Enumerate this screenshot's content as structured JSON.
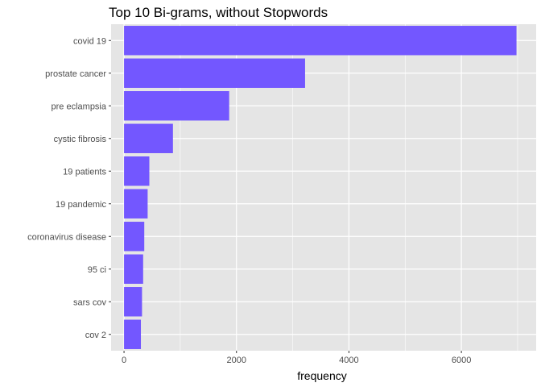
{
  "chart_data": {
    "type": "bar",
    "orientation": "horizontal",
    "title": "Top 10 Bi-grams, without Stopwords",
    "xlabel": "frequency",
    "ylabel": "",
    "categories": [
      "covid 19",
      "prostate cancer",
      "pre eclampsia",
      "cystic fibrosis",
      "19 patients",
      "19 pandemic",
      "coronavirus disease",
      "95 ci",
      "sars cov",
      "cov 2"
    ],
    "values": [
      6980,
      3220,
      1870,
      870,
      450,
      420,
      360,
      340,
      320,
      300
    ],
    "xlim": [
      -230,
      7330
    ],
    "x_ticks": [
      0,
      2000,
      4000,
      6000
    ],
    "x_tick_labels": [
      "0",
      "2000",
      "4000",
      "6000"
    ],
    "bar_color": "#7357FF",
    "panel_background": "#E5E5E5",
    "grid_color": "#FFFFFF",
    "grid": true,
    "legend": "none"
  }
}
